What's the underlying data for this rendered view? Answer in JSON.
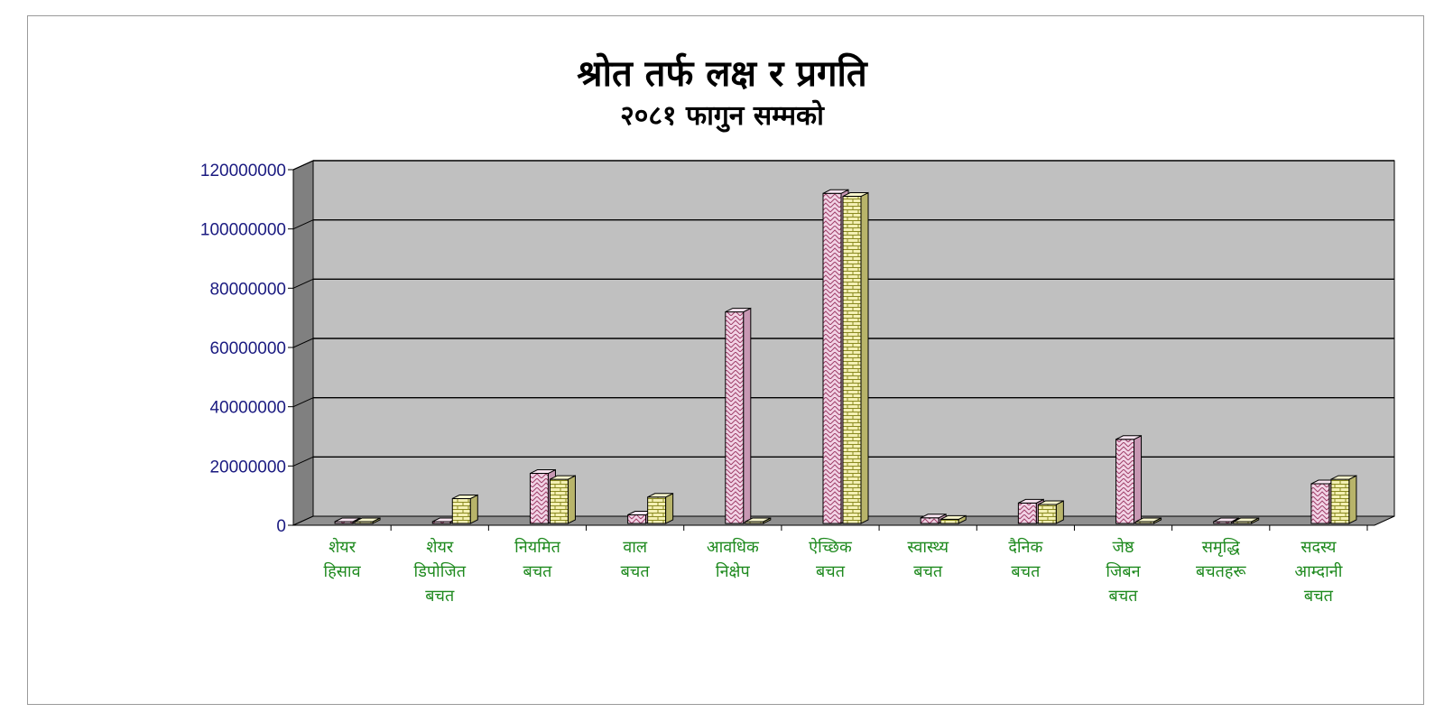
{
  "chart_data": {
    "type": "bar",
    "title": "श्रोत तर्फ लक्ष र प्रगति",
    "subtitle": "२०८१ फागुन सम्मको",
    "categories": [
      [
        "शेयर",
        "हिसाव"
      ],
      [
        "शेयर",
        "डिपोजित",
        "बचत"
      ],
      [
        "नियमित",
        "बचत"
      ],
      [
        "वाल",
        "बचत"
      ],
      [
        "आवधिक",
        "निक्षेप"
      ],
      [
        "ऐच्छिक",
        "बचत"
      ],
      [
        "स्वास्थ्य",
        "बचत"
      ],
      [
        "दैनिक",
        "बचत"
      ],
      [
        "जेष्ठ",
        "जिबन",
        "बचत"
      ],
      [
        "समृद्धि",
        "बचतहरू"
      ],
      [
        "सदस्य",
        "आम्दानी",
        "बचत"
      ]
    ],
    "series": [
      {
        "values": [
          0,
          0,
          17500000,
          3500000,
          72000000,
          112000000,
          2500000,
          7500000,
          29000000,
          0,
          14000000
        ]
      },
      {
        "values": [
          0,
          9000000,
          15500000,
          9500000,
          0,
          111000000,
          2000000,
          7000000,
          0,
          500000,
          15500000
        ]
      }
    ],
    "ylim": [
      0,
      120000000
    ],
    "yticks": [
      0,
      20000000,
      40000000,
      60000000,
      80000000,
      100000000,
      120000000
    ],
    "grid": true,
    "colors": {
      "series1_face": "#f2d4e6",
      "series1_pattern": "#a0406a",
      "series2_face": "#f4f0b4",
      "series2_pattern": "#8a8a20",
      "wall": "#c0c0c0",
      "side_wall": "#808080",
      "ytick": "#1a1a80",
      "xtick": "#1f8a1f"
    }
  }
}
